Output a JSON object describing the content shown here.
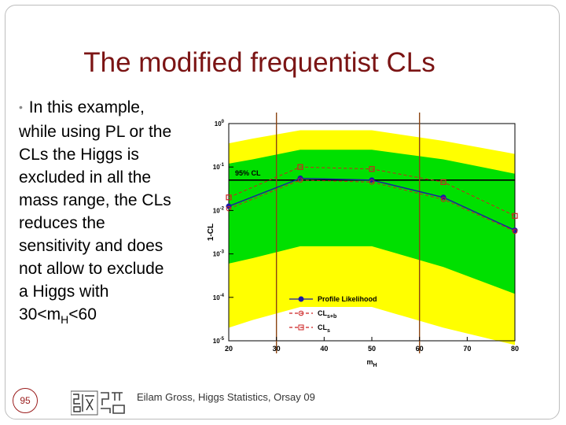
{
  "slide": {
    "title": "The modified frequentist CLs",
    "bullet_parts": [
      "In this example,",
      "while using PL or the",
      "CLs the Higgs is",
      "excluded in all the",
      "mass range, the CLs",
      "reduces the",
      "sensitivity and does",
      "not allow to exclude",
      "a Higgs with"
    ],
    "bullet_last_pre": "30<m",
    "bullet_last_sub": "H",
    "bullet_last_post": "<60",
    "slide_number": "95",
    "footer": "Eilam Gross, Higgs Statistics, Orsay 09"
  },
  "chart_data": {
    "type": "line",
    "ylabel": "1-CL",
    "xlabel": "m",
    "xlabel_sub": "H",
    "xlim": [
      20,
      80
    ],
    "ylim_log10": [
      -5,
      0
    ],
    "yscale": "log",
    "x_ticks": [
      "20",
      "30",
      "40",
      "50",
      "60",
      "70",
      "80"
    ],
    "y_ticks": [
      {
        "base": "10",
        "exp": "0"
      },
      {
        "base": "10",
        "exp": "-1"
      },
      {
        "base": "10",
        "exp": "-2"
      },
      {
        "base": "10",
        "exp": "-3"
      },
      {
        "base": "10",
        "exp": "-4"
      },
      {
        "base": "10",
        "exp": "-5"
      }
    ],
    "reference_line": {
      "label": "95% CL",
      "y": 0.05
    },
    "vertical_lines_x": [
      30,
      60
    ],
    "bands": {
      "x": [
        20,
        25,
        35,
        50,
        65,
        80
      ],
      "yellow_upper": [
        0.35,
        0.45,
        0.7,
        0.7,
        0.4,
        0.2
      ],
      "green_upper": [
        0.12,
        0.15,
        0.25,
        0.25,
        0.15,
        0.07
      ],
      "green_lower": [
        0.0006,
        0.0008,
        0.0015,
        0.0015,
        0.0005,
        0.00012
      ],
      "yellow_lower": [
        2e-05,
        3e-05,
        6e-05,
        6e-05,
        2e-05,
        8e-06
      ]
    },
    "series": [
      {
        "name": "Profile Likelihood",
        "color": "#1a1aa6",
        "style": "solid",
        "marker": "circle",
        "x": [
          20,
          35,
          50,
          65,
          80
        ],
        "y": [
          0.0125,
          0.055,
          0.05,
          0.02,
          0.0035
        ]
      },
      {
        "name": "CL",
        "sub": "s+b",
        "color": "#cc2222",
        "style": "dashed",
        "marker": "open-circle",
        "x": [
          20,
          35,
          50,
          65,
          80
        ],
        "y": [
          0.011,
          0.05,
          0.045,
          0.018,
          0.0033
        ]
      },
      {
        "name": "CL",
        "sub": "s",
        "color": "#cc2222",
        "style": "dashed",
        "marker": "open-square",
        "x": [
          20,
          35,
          50,
          65,
          80
        ],
        "y": [
          0.02,
          0.1,
          0.09,
          0.045,
          0.0075
        ]
      }
    ],
    "colors": {
      "yellow": "#ffff00",
      "green": "#00e000",
      "vline": "#8b4513"
    }
  }
}
